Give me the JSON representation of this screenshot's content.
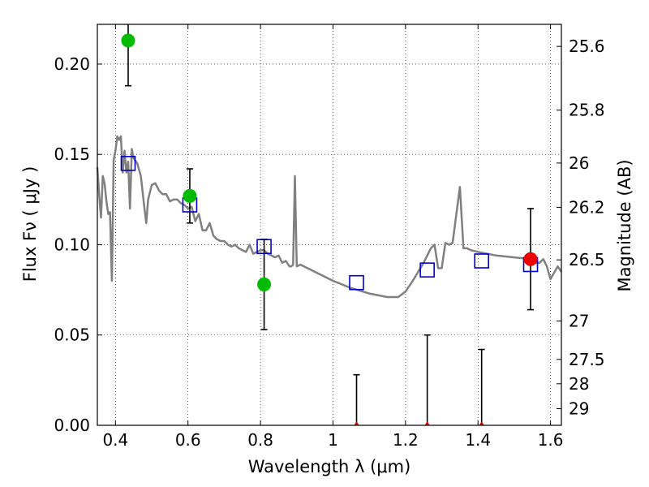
{
  "chart_data": {
    "type": "scatter",
    "xlabel": "Wavelength  λ (μm)",
    "ylabel": "Flux  Fν  ( μJy )",
    "ylabel_right": "Magnitude (AB)",
    "xlim": [
      0.35,
      1.63
    ],
    "ylim": [
      0.0,
      0.222
    ],
    "grid": true,
    "x_ticks": [
      0.4,
      0.6,
      0.8,
      1.0,
      1.2,
      1.4,
      1.6
    ],
    "x_tick_labels": [
      "0.4",
      "0.6",
      "0.8",
      "1",
      "1.2",
      "1.4",
      "1.6"
    ],
    "y_ticks": [
      0.0,
      0.05,
      0.1,
      0.15,
      0.2
    ],
    "y_tick_labels": [
      "0.00",
      "0.05",
      "0.10",
      "0.15",
      "0.20"
    ],
    "right_ticks": [
      {
        "label": "25.6",
        "flux": 0.2098
      },
      {
        "label": "25.8",
        "flux": 0.1745
      },
      {
        "label": "26",
        "flux": 0.1452
      },
      {
        "label": "26.2",
        "flux": 0.1207
      },
      {
        "label": "26.5",
        "flux": 0.0916
      },
      {
        "label": "27",
        "flux": 0.0578
      },
      {
        "label": "27.5",
        "flux": 0.0365
      },
      {
        "label": "28",
        "flux": 0.023
      },
      {
        "label": "29",
        "flux": 0.0092
      }
    ],
    "model_spectrum": {
      "color": "#808080",
      "x": [
        0.35,
        0.355,
        0.36,
        0.365,
        0.37,
        0.375,
        0.38,
        0.385,
        0.39,
        0.395,
        0.4,
        0.405,
        0.41,
        0.415,
        0.42,
        0.425,
        0.43,
        0.435,
        0.44,
        0.445,
        0.45,
        0.46,
        0.47,
        0.48,
        0.485,
        0.49,
        0.5,
        0.51,
        0.52,
        0.53,
        0.54,
        0.55,
        0.56,
        0.57,
        0.58,
        0.59,
        0.6,
        0.61,
        0.62,
        0.63,
        0.64,
        0.65,
        0.66,
        0.67,
        0.68,
        0.69,
        0.7,
        0.71,
        0.72,
        0.73,
        0.74,
        0.75,
        0.76,
        0.77,
        0.78,
        0.79,
        0.8,
        0.81,
        0.82,
        0.83,
        0.84,
        0.85,
        0.86,
        0.87,
        0.88,
        0.885,
        0.89,
        0.895,
        0.9,
        0.91,
        0.92,
        0.95,
        1.0,
        1.05,
        1.1,
        1.15,
        1.18,
        1.2,
        1.22,
        1.25,
        1.27,
        1.28,
        1.29,
        1.3,
        1.31,
        1.32,
        1.33,
        1.35,
        1.36,
        1.37,
        1.38,
        1.4,
        1.45,
        1.5,
        1.55,
        1.56,
        1.57,
        1.58,
        1.59,
        1.6,
        1.62,
        1.63
      ],
      "y": [
        0.143,
        0.128,
        0.115,
        0.138,
        0.134,
        0.124,
        0.117,
        0.118,
        0.08,
        0.147,
        0.152,
        0.16,
        0.158,
        0.16,
        0.14,
        0.152,
        0.14,
        0.146,
        0.12,
        0.153,
        0.148,
        0.145,
        0.138,
        0.12,
        0.112,
        0.125,
        0.133,
        0.134,
        0.13,
        0.128,
        0.128,
        0.124,
        0.125,
        0.125,
        0.123,
        0.122,
        0.12,
        0.121,
        0.113,
        0.117,
        0.108,
        0.108,
        0.112,
        0.105,
        0.103,
        0.102,
        0.102,
        0.1,
        0.099,
        0.1,
        0.098,
        0.097,
        0.096,
        0.1,
        0.095,
        0.096,
        0.097,
        0.097,
        0.095,
        0.094,
        0.093,
        0.094,
        0.09,
        0.091,
        0.088,
        0.088,
        0.089,
        0.138,
        0.088,
        0.089,
        0.088,
        0.085,
        0.08,
        0.076,
        0.073,
        0.071,
        0.071,
        0.074,
        0.08,
        0.09,
        0.098,
        0.1,
        0.087,
        0.087,
        0.101,
        0.1,
        0.101,
        0.132,
        0.098,
        0.098,
        0.097,
        0.096,
        0.094,
        0.093,
        0.092,
        0.09,
        0.09,
        0.092,
        0.088,
        0.081,
        0.088,
        0.085
      ]
    },
    "series": [
      {
        "marker": "open-square",
        "color": "#0000cc",
        "x": [
          0.435,
          0.605,
          0.81,
          1.065,
          1.26,
          1.41,
          1.545
        ],
        "y": [
          0.145,
          0.122,
          0.099,
          0.079,
          0.086,
          0.091,
          0.089
        ]
      },
      {
        "marker": "filled-circle",
        "color": "#00bb00",
        "x": [
          0.435,
          0.605,
          0.81
        ],
        "y": [
          0.213,
          0.127,
          0.078
        ],
        "err_low": [
          0.188,
          0.112,
          0.053
        ],
        "err_high": [
          0.222,
          0.142,
          0.103
        ]
      },
      {
        "marker": "filled-circle",
        "color": "#ee0000",
        "x": [
          1.545
        ],
        "y": [
          0.092
        ],
        "err_low": [
          0.064
        ],
        "err_high": [
          0.12
        ]
      },
      {
        "marker": "upper-limit",
        "color": "#cc0000",
        "x": [
          1.065,
          1.26,
          1.41
        ],
        "y": [
          0.0,
          0.0,
          0.0
        ],
        "err_high": [
          0.028,
          0.05,
          0.042
        ]
      }
    ]
  }
}
